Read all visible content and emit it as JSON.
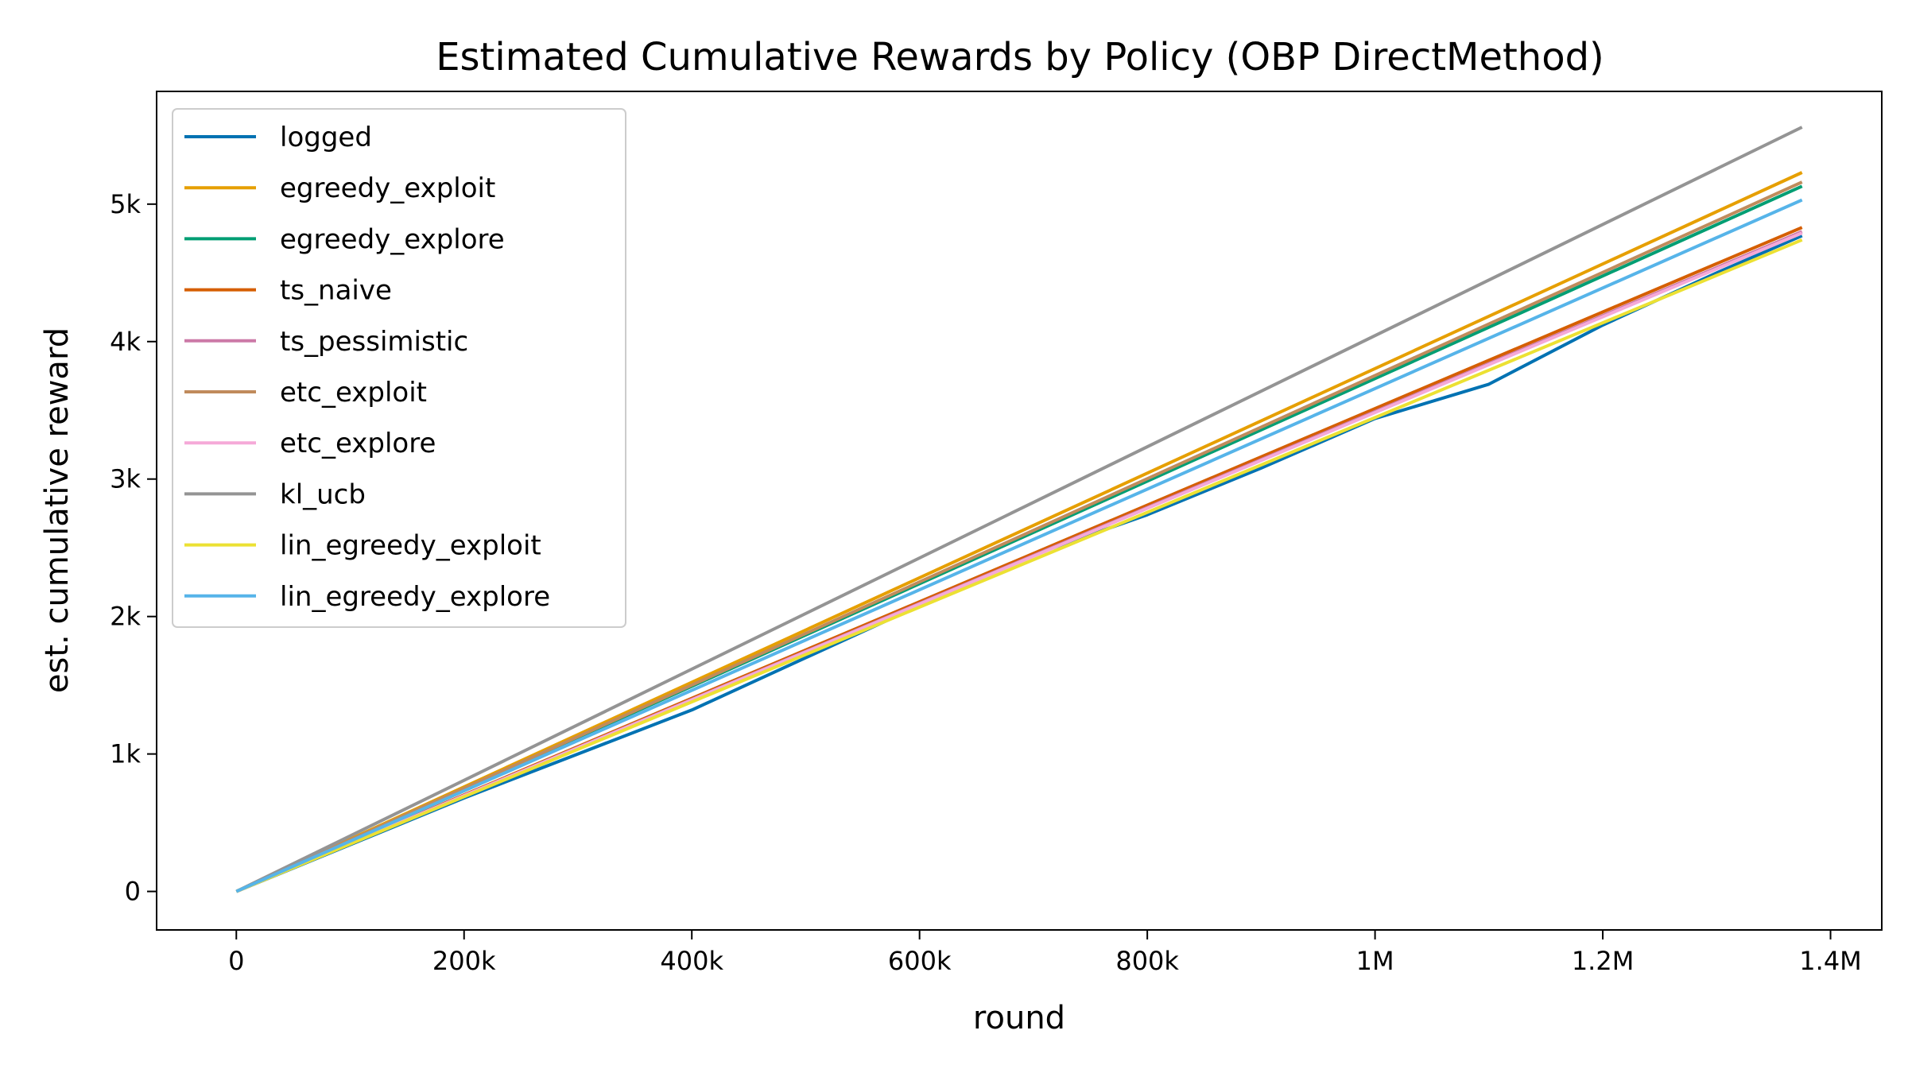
{
  "chart_data": {
    "type": "line",
    "title": "Estimated Cumulative Rewards by Policy (OBP DirectMethod)",
    "xlabel": "round",
    "ylabel": "est. cumulative reward",
    "xlim": [
      -70000,
      1445000
    ],
    "ylim": [
      -280,
      5820
    ],
    "x_ticks": [
      {
        "value": 0,
        "label": "0"
      },
      {
        "value": 200000,
        "label": "200k"
      },
      {
        "value": 400000,
        "label": "400k"
      },
      {
        "value": 600000,
        "label": "600k"
      },
      {
        "value": 800000,
        "label": "800k"
      },
      {
        "value": 1000000,
        "label": "1M"
      },
      {
        "value": 1200000,
        "label": "1.2M"
      },
      {
        "value": 1400000,
        "label": "1.4M"
      }
    ],
    "y_ticks": [
      {
        "value": 0,
        "label": "0"
      },
      {
        "value": 1000,
        "label": "1k"
      },
      {
        "value": 2000,
        "label": "2k"
      },
      {
        "value": 3000,
        "label": "3k"
      },
      {
        "value": 4000,
        "label": "4k"
      },
      {
        "value": 5000,
        "label": "5k"
      }
    ],
    "grid": false,
    "legend_position": "top-left",
    "series": [
      {
        "name": "logged",
        "color": "#0072B2",
        "x": [
          0,
          100000,
          200000,
          300000,
          400000,
          500000,
          600000,
          700000,
          800000,
          900000,
          1000000,
          1100000,
          1200000,
          1300000,
          1375000
        ],
        "y": [
          0,
          340,
          680,
          1000,
          1320,
          1700,
          2080,
          2450,
          2740,
          3080,
          3440,
          3690,
          4120,
          4500,
          4770
        ]
      },
      {
        "name": "egreedy_exploit",
        "color": "#E69F00",
        "x": [
          0,
          1375000
        ],
        "y": [
          0,
          5230
        ]
      },
      {
        "name": "egreedy_explore",
        "color": "#009E73",
        "x": [
          0,
          1375000
        ],
        "y": [
          0,
          5130
        ]
      },
      {
        "name": "ts_naive",
        "color": "#D55E00",
        "x": [
          0,
          1375000
        ],
        "y": [
          0,
          4830
        ]
      },
      {
        "name": "ts_pessimistic",
        "color": "#CC79A7",
        "x": [
          0,
          1375000
        ],
        "y": [
          0,
          4800
        ]
      },
      {
        "name": "etc_exploit",
        "color": "#C08B5C",
        "x": [
          0,
          1375000
        ],
        "y": [
          0,
          5160
        ]
      },
      {
        "name": "etc_explore",
        "color": "#F5A9D8",
        "x": [
          0,
          1375000
        ],
        "y": [
          0,
          4790
        ]
      },
      {
        "name": "kl_ucb",
        "color": "#949494",
        "x": [
          0,
          1375000
        ],
        "y": [
          0,
          5560
        ]
      },
      {
        "name": "lin_egreedy_exploit",
        "color": "#ECE133",
        "x": [
          0,
          1375000
        ],
        "y": [
          0,
          4740
        ]
      },
      {
        "name": "lin_egreedy_explore",
        "color": "#56B4E9",
        "x": [
          0,
          1375000
        ],
        "y": [
          0,
          5030
        ]
      }
    ]
  }
}
